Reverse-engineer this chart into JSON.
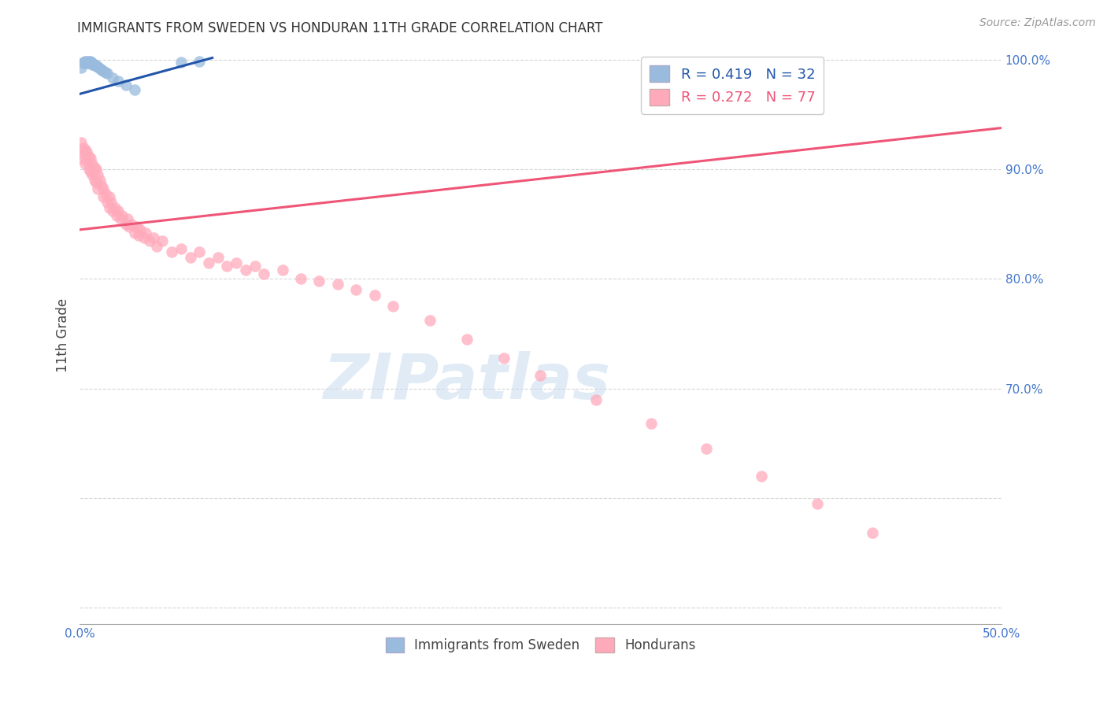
{
  "title": "IMMIGRANTS FROM SWEDEN VS HONDURAN 11TH GRADE CORRELATION CHART",
  "source": "Source: ZipAtlas.com",
  "ylabel": "11th Grade",
  "xlim": [
    0.0,
    0.5
  ],
  "ylim": [
    0.485,
    1.012
  ],
  "ytick_vals": [
    0.5,
    0.6,
    0.7,
    0.8,
    0.9,
    1.0
  ],
  "ytick_labels": [
    "",
    "",
    "70.0%",
    "80.0%",
    "90.0%",
    "100.0%"
  ],
  "xtick_vals": [
    0.0,
    0.05,
    0.1,
    0.15,
    0.2,
    0.25,
    0.3,
    0.35,
    0.4,
    0.45,
    0.5
  ],
  "xtick_labels": [
    "0.0%",
    "",
    "",
    "",
    "",
    "",
    "",
    "",
    "",
    "",
    "50.0%"
  ],
  "legend_blue_label": "R = 0.419   N = 32",
  "legend_pink_label": "R = 0.272   N = 77",
  "legend_bottom_blue": "Immigrants from Sweden",
  "legend_bottom_pink": "Hondurans",
  "blue_color": "#99BBDD",
  "pink_color": "#FFAABB",
  "blue_line_color": "#2255AA",
  "pink_line_color": "#EE5577",
  "axis_label_color": "#4477CC",
  "watermark": "ZIPatlas",
  "sweden_x": [
    0.001,
    0.002,
    0.002,
    0.003,
    0.003,
    0.004,
    0.004,
    0.004,
    0.005,
    0.005,
    0.005,
    0.006,
    0.006,
    0.006,
    0.007,
    0.007,
    0.008,
    0.008,
    0.009,
    0.01,
    0.01,
    0.011,
    0.012,
    0.013,
    0.014,
    0.015,
    0.018,
    0.021,
    0.025,
    0.03,
    0.055,
    0.065
  ],
  "sweden_y": [
    0.993,
    0.998,
    0.997,
    0.997,
    0.999,
    0.997,
    0.998,
    0.999,
    0.997,
    0.998,
    0.999,
    0.997,
    0.998,
    0.999,
    0.996,
    0.997,
    0.996,
    0.995,
    0.995,
    0.994,
    0.994,
    0.992,
    0.991,
    0.99,
    0.989,
    0.988,
    0.984,
    0.981,
    0.977,
    0.973,
    0.998,
    0.999
  ],
  "honduran_x": [
    0.001,
    0.001,
    0.002,
    0.002,
    0.003,
    0.003,
    0.004,
    0.004,
    0.005,
    0.005,
    0.006,
    0.006,
    0.007,
    0.007,
    0.008,
    0.008,
    0.009,
    0.009,
    0.01,
    0.01,
    0.011,
    0.012,
    0.013,
    0.013,
    0.014,
    0.015,
    0.016,
    0.016,
    0.017,
    0.018,
    0.019,
    0.02,
    0.021,
    0.022,
    0.023,
    0.025,
    0.026,
    0.027,
    0.028,
    0.03,
    0.031,
    0.032,
    0.033,
    0.035,
    0.036,
    0.038,
    0.04,
    0.042,
    0.045,
    0.05,
    0.055,
    0.06,
    0.065,
    0.07,
    0.075,
    0.08,
    0.085,
    0.09,
    0.095,
    0.1,
    0.11,
    0.12,
    0.13,
    0.14,
    0.15,
    0.16,
    0.17,
    0.19,
    0.21,
    0.23,
    0.25,
    0.28,
    0.31,
    0.34,
    0.37,
    0.4,
    0.43
  ],
  "honduran_y": [
    0.925,
    0.91,
    0.92,
    0.915,
    0.918,
    0.905,
    0.916,
    0.908,
    0.912,
    0.9,
    0.91,
    0.898,
    0.905,
    0.895,
    0.902,
    0.89,
    0.9,
    0.888,
    0.895,
    0.882,
    0.89,
    0.885,
    0.882,
    0.875,
    0.878,
    0.87,
    0.875,
    0.865,
    0.87,
    0.862,
    0.865,
    0.858,
    0.862,
    0.855,
    0.858,
    0.85,
    0.855,
    0.848,
    0.85,
    0.842,
    0.848,
    0.84,
    0.845,
    0.838,
    0.842,
    0.835,
    0.838,
    0.83,
    0.835,
    0.825,
    0.828,
    0.82,
    0.825,
    0.815,
    0.82,
    0.812,
    0.815,
    0.808,
    0.812,
    0.805,
    0.808,
    0.8,
    0.798,
    0.795,
    0.79,
    0.785,
    0.775,
    0.762,
    0.745,
    0.728,
    0.712,
    0.69,
    0.668,
    0.645,
    0.62,
    0.595,
    0.568
  ],
  "blue_trend_x": [
    0.0,
    0.072
  ],
  "blue_trend_y": [
    0.969,
    1.002
  ],
  "pink_trend_x": [
    0.0,
    0.5
  ],
  "pink_trend_y": [
    0.845,
    0.938
  ]
}
